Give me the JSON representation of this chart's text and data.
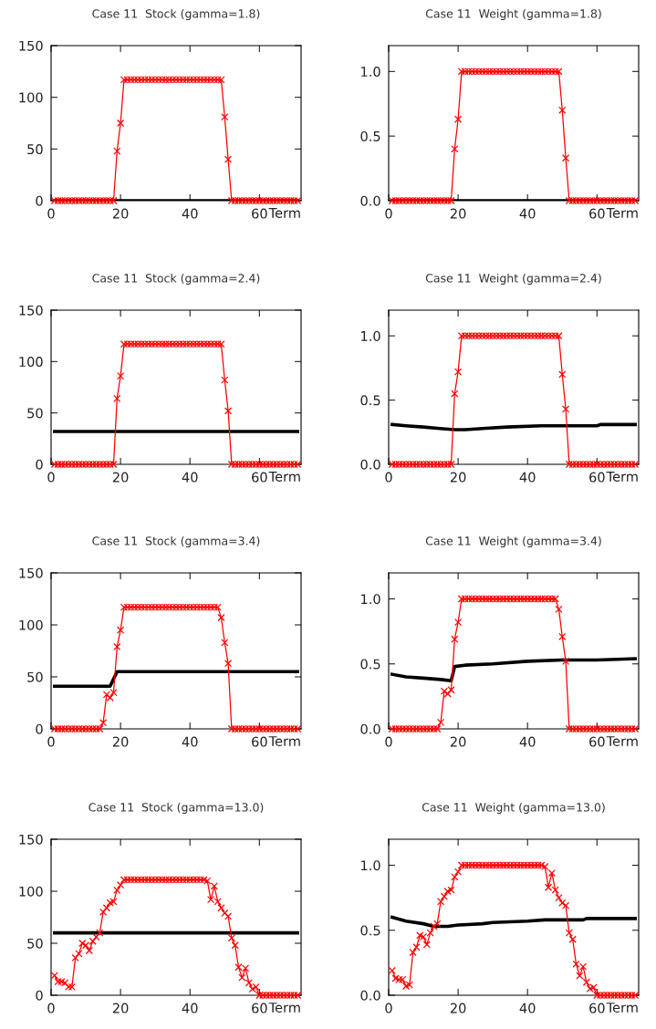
{
  "chart_data": [
    {
      "type": "line",
      "title": "Case 11  Stock (gamma=1.8)",
      "xlabel": "Term",
      "xlim": [
        0,
        72
      ],
      "xticks": [
        0,
        20,
        40,
        60
      ],
      "ylim": [
        0,
        150
      ],
      "yticks": [
        0,
        50,
        100,
        150
      ],
      "x": [
        1,
        2,
        3,
        4,
        5,
        6,
        7,
        8,
        9,
        10,
        11,
        12,
        13,
        14,
        15,
        16,
        17,
        18,
        19,
        20,
        21,
        22,
        23,
        24,
        25,
        26,
        27,
        28,
        29,
        30,
        31,
        32,
        33,
        34,
        35,
        36,
        37,
        38,
        39,
        40,
        41,
        42,
        43,
        44,
        45,
        46,
        47,
        48,
        49,
        50,
        51,
        52,
        53,
        54,
        55,
        56,
        57,
        58,
        59,
        60,
        61,
        62,
        63,
        64,
        65,
        66,
        67,
        68,
        69,
        70,
        71
      ],
      "series": [
        {
          "color": "#ff0000",
          "marker": "cross",
          "values": [
            0,
            0,
            0,
            0,
            0,
            0,
            0,
            0,
            0,
            0,
            0,
            0,
            0,
            0,
            0,
            0,
            0,
            0,
            48,
            75,
            117,
            117,
            117,
            117,
            117,
            117,
            117,
            117,
            117,
            117,
            117,
            117,
            117,
            117,
            117,
            117,
            117,
            117,
            117,
            117,
            117,
            117,
            117,
            117,
            117,
            117,
            117,
            117,
            117,
            81,
            40,
            0,
            0,
            0,
            0,
            0,
            0,
            0,
            0,
            0,
            0,
            0,
            0,
            0,
            0,
            0,
            0,
            0,
            0,
            0,
            0
          ]
        },
        {
          "color": "#000000",
          "marker": "none",
          "x": [
            1,
            71
          ],
          "values": [
            0,
            0
          ]
        }
      ]
    },
    {
      "type": "line",
      "title": "Case 11  Weight (gamma=1.8)",
      "xlabel": "Term",
      "xlim": [
        0,
        72
      ],
      "xticks": [
        0,
        20,
        40,
        60
      ],
      "ylim": [
        0,
        1.2
      ],
      "yticks": [
        {
          "value": 0,
          "label": "0.0"
        },
        {
          "value": 0.5,
          "label": "0.5"
        },
        {
          "value": 1,
          "label": "1.0"
        }
      ],
      "x": [
        1,
        2,
        3,
        4,
        5,
        6,
        7,
        8,
        9,
        10,
        11,
        12,
        13,
        14,
        15,
        16,
        17,
        18,
        19,
        20,
        21,
        22,
        23,
        24,
        25,
        26,
        27,
        28,
        29,
        30,
        31,
        32,
        33,
        34,
        35,
        36,
        37,
        38,
        39,
        40,
        41,
        42,
        43,
        44,
        45,
        46,
        47,
        48,
        49,
        50,
        51,
        52,
        53,
        54,
        55,
        56,
        57,
        58,
        59,
        60,
        61,
        62,
        63,
        64,
        65,
        66,
        67,
        68,
        69,
        70,
        71
      ],
      "series": [
        {
          "color": "#ff0000",
          "marker": "cross",
          "values": [
            0,
            0,
            0,
            0,
            0,
            0,
            0,
            0,
            0,
            0,
            0,
            0,
            0,
            0,
            0,
            0,
            0,
            0,
            0.4,
            0.63,
            1.0,
            1.0,
            1.0,
            1.0,
            1.0,
            1.0,
            1.0,
            1.0,
            1.0,
            1.0,
            1.0,
            1.0,
            1.0,
            1.0,
            1.0,
            1.0,
            1.0,
            1.0,
            1.0,
            1.0,
            1.0,
            1.0,
            1.0,
            1.0,
            1.0,
            1.0,
            1.0,
            1.0,
            1.0,
            0.7,
            0.33,
            0,
            0,
            0,
            0,
            0,
            0,
            0,
            0,
            0,
            0,
            0,
            0,
            0,
            0,
            0,
            0,
            0,
            0,
            0,
            0
          ]
        },
        {
          "color": "#000000",
          "marker": "none",
          "x": [
            1,
            71
          ],
          "values": [
            0,
            0
          ]
        }
      ]
    },
    {
      "type": "line",
      "title": "Case 11  Stock (gamma=2.4)",
      "xlabel": "Term",
      "xlim": [
        0,
        72
      ],
      "xticks": [
        0,
        20,
        40,
        60
      ],
      "ylim": [
        0,
        150
      ],
      "yticks": [
        0,
        50,
        100,
        150
      ],
      "x": [
        1,
        2,
        3,
        4,
        5,
        6,
        7,
        8,
        9,
        10,
        11,
        12,
        13,
        14,
        15,
        16,
        17,
        18,
        19,
        20,
        21,
        22,
        23,
        24,
        25,
        26,
        27,
        28,
        29,
        30,
        31,
        32,
        33,
        34,
        35,
        36,
        37,
        38,
        39,
        40,
        41,
        42,
        43,
        44,
        45,
        46,
        47,
        48,
        49,
        50,
        51,
        52,
        53,
        54,
        55,
        56,
        57,
        58,
        59,
        60,
        61,
        62,
        63,
        64,
        65,
        66,
        67,
        68,
        69,
        70,
        71
      ],
      "series": [
        {
          "color": "#ff0000",
          "marker": "cross",
          "values": [
            0,
            0,
            0,
            0,
            0,
            0,
            0,
            0,
            0,
            0,
            0,
            0,
            0,
            0,
            0,
            0,
            0,
            0,
            64,
            86,
            117,
            117,
            117,
            117,
            117,
            117,
            117,
            117,
            117,
            117,
            117,
            117,
            117,
            117,
            117,
            117,
            117,
            117,
            117,
            117,
            117,
            117,
            117,
            117,
            117,
            117,
            117,
            117,
            117,
            82,
            52,
            0,
            0,
            0,
            0,
            0,
            0,
            0,
            0,
            0,
            0,
            0,
            0,
            0,
            0,
            0,
            0,
            0,
            0,
            0,
            0
          ]
        },
        {
          "color": "#000000",
          "marker": "none",
          "x": [
            1,
            71
          ],
          "values": [
            32,
            32
          ]
        }
      ]
    },
    {
      "type": "line",
      "title": "Case 11  Weight (gamma=2.4)",
      "xlabel": "Term",
      "xlim": [
        0,
        72
      ],
      "xticks": [
        0,
        20,
        40,
        60
      ],
      "ylim": [
        0,
        1.2
      ],
      "yticks": [
        {
          "value": 0,
          "label": "0.0"
        },
        {
          "value": 0.5,
          "label": "0.5"
        },
        {
          "value": 1,
          "label": "1.0"
        }
      ],
      "x": [
        1,
        2,
        3,
        4,
        5,
        6,
        7,
        8,
        9,
        10,
        11,
        12,
        13,
        14,
        15,
        16,
        17,
        18,
        19,
        20,
        21,
        22,
        23,
        24,
        25,
        26,
        27,
        28,
        29,
        30,
        31,
        32,
        33,
        34,
        35,
        36,
        37,
        38,
        39,
        40,
        41,
        42,
        43,
        44,
        45,
        46,
        47,
        48,
        49,
        50,
        51,
        52,
        53,
        54,
        55,
        56,
        57,
        58,
        59,
        60,
        61,
        62,
        63,
        64,
        65,
        66,
        67,
        68,
        69,
        70,
        71
      ],
      "series": [
        {
          "color": "#ff0000",
          "marker": "cross",
          "values": [
            0,
            0,
            0,
            0,
            0,
            0,
            0,
            0,
            0,
            0,
            0,
            0,
            0,
            0,
            0,
            0,
            0,
            0,
            0.55,
            0.72,
            1.0,
            1.0,
            1.0,
            1.0,
            1.0,
            1.0,
            1.0,
            1.0,
            1.0,
            1.0,
            1.0,
            1.0,
            1.0,
            1.0,
            1.0,
            1.0,
            1.0,
            1.0,
            1.0,
            1.0,
            1.0,
            1.0,
            1.0,
            1.0,
            1.0,
            1.0,
            1.0,
            1.0,
            1.0,
            0.7,
            0.43,
            0,
            0,
            0,
            0,
            0,
            0,
            0,
            0,
            0,
            0,
            0,
            0,
            0,
            0,
            0,
            0,
            0,
            0,
            0,
            0
          ]
        },
        {
          "color": "#000000",
          "marker": "none",
          "x": [
            1,
            5,
            10,
            14,
            19,
            22,
            28,
            34,
            44,
            60,
            61,
            71
          ],
          "values": [
            0.31,
            0.3,
            0.29,
            0.28,
            0.27,
            0.27,
            0.28,
            0.29,
            0.3,
            0.3,
            0.31,
            0.31
          ]
        }
      ]
    },
    {
      "type": "line",
      "title": "Case 11  Stock (gamma=3.4)",
      "xlabel": "Term",
      "xlim": [
        0,
        72
      ],
      "xticks": [
        0,
        20,
        40,
        60
      ],
      "ylim": [
        0,
        150
      ],
      "yticks": [
        0,
        50,
        100,
        150
      ],
      "x": [
        1,
        2,
        3,
        4,
        5,
        6,
        7,
        8,
        9,
        10,
        11,
        12,
        13,
        14,
        15,
        16,
        17,
        18,
        19,
        20,
        21,
        22,
        23,
        24,
        25,
        26,
        27,
        28,
        29,
        30,
        31,
        32,
        33,
        34,
        35,
        36,
        37,
        38,
        39,
        40,
        41,
        42,
        43,
        44,
        45,
        46,
        47,
        48,
        49,
        50,
        51,
        52,
        53,
        54,
        55,
        56,
        57,
        58,
        59,
        60,
        61,
        62,
        63,
        64,
        65,
        66,
        67,
        68,
        69,
        70,
        71
      ],
      "series": [
        {
          "color": "#ff0000",
          "marker": "cross",
          "values": [
            0,
            0,
            0,
            0,
            0,
            0,
            0,
            0,
            0,
            0,
            0,
            0,
            0,
            0,
            6,
            33,
            30,
            35,
            79,
            95,
            117,
            117,
            117,
            117,
            117,
            117,
            117,
            117,
            117,
            117,
            117,
            117,
            117,
            117,
            117,
            117,
            117,
            117,
            117,
            117,
            117,
            117,
            117,
            117,
            117,
            117,
            117,
            117,
            107,
            83,
            63,
            0,
            0,
            0,
            0,
            0,
            0,
            0,
            0,
            0,
            0,
            0,
            0,
            0,
            0,
            0,
            0,
            0,
            0,
            0,
            0
          ]
        },
        {
          "color": "#000000",
          "marker": "none",
          "x": [
            1,
            17,
            19,
            71
          ],
          "values": [
            41,
            41,
            55,
            55
          ]
        }
      ]
    },
    {
      "type": "line",
      "title": "Case 11  Weight (gamma=3.4)",
      "xlabel": "Term",
      "xlim": [
        0,
        72
      ],
      "xticks": [
        0,
        20,
        40,
        60
      ],
      "ylim": [
        0,
        1.2
      ],
      "yticks": [
        {
          "value": 0,
          "label": "0.0"
        },
        {
          "value": 0.5,
          "label": "0.5"
        },
        {
          "value": 1,
          "label": "1.0"
        }
      ],
      "x": [
        1,
        2,
        3,
        4,
        5,
        6,
        7,
        8,
        9,
        10,
        11,
        12,
        13,
        14,
        15,
        16,
        17,
        18,
        19,
        20,
        21,
        22,
        23,
        24,
        25,
        26,
        27,
        28,
        29,
        30,
        31,
        32,
        33,
        34,
        35,
        36,
        37,
        38,
        39,
        40,
        41,
        42,
        43,
        44,
        45,
        46,
        47,
        48,
        49,
        50,
        51,
        52,
        53,
        54,
        55,
        56,
        57,
        58,
        59,
        60,
        61,
        62,
        63,
        64,
        65,
        66,
        67,
        68,
        69,
        70,
        71
      ],
      "series": [
        {
          "color": "#ff0000",
          "marker": "cross",
          "values": [
            0,
            0,
            0,
            0,
            0,
            0,
            0,
            0,
            0,
            0,
            0,
            0,
            0,
            0,
            0.05,
            0.29,
            0.27,
            0.3,
            0.69,
            0.82,
            1.0,
            1.0,
            1.0,
            1.0,
            1.0,
            1.0,
            1.0,
            1.0,
            1.0,
            1.0,
            1.0,
            1.0,
            1.0,
            1.0,
            1.0,
            1.0,
            1.0,
            1.0,
            1.0,
            1.0,
            1.0,
            1.0,
            1.0,
            1.0,
            1.0,
            1.0,
            1.0,
            1.0,
            0.92,
            0.71,
            0.52,
            0,
            0,
            0,
            0,
            0,
            0,
            0,
            0,
            0,
            0,
            0,
            0,
            0,
            0,
            0,
            0,
            0,
            0,
            0,
            0
          ]
        },
        {
          "color": "#000000",
          "marker": "none",
          "x": [
            1,
            5,
            10,
            15,
            18,
            19,
            22,
            30,
            40,
            50,
            60,
            71
          ],
          "values": [
            0.42,
            0.4,
            0.39,
            0.38,
            0.37,
            0.48,
            0.49,
            0.5,
            0.52,
            0.53,
            0.53,
            0.54
          ]
        }
      ]
    },
    {
      "type": "line",
      "title": "Case 11  Stock (gamma=13.0)",
      "xlabel": "Term",
      "xlim": [
        0,
        72
      ],
      "xticks": [
        0,
        20,
        40,
        60
      ],
      "ylim": [
        0,
        150
      ],
      "yticks": [
        0,
        50,
        100,
        150
      ],
      "x": [
        1,
        2,
        3,
        4,
        5,
        6,
        7,
        8,
        9,
        10,
        11,
        12,
        13,
        14,
        15,
        16,
        17,
        18,
        19,
        20,
        21,
        22,
        23,
        24,
        25,
        26,
        27,
        28,
        29,
        30,
        31,
        32,
        33,
        34,
        35,
        36,
        37,
        38,
        39,
        40,
        41,
        42,
        43,
        44,
        45,
        46,
        47,
        48,
        49,
        50,
        51,
        52,
        53,
        54,
        55,
        56,
        57,
        58,
        59,
        60,
        61,
        62,
        63,
        64,
        65,
        66,
        67,
        68,
        69,
        70,
        71
      ],
      "series": [
        {
          "color": "#ff0000",
          "marker": "cross",
          "values": [
            19,
            13,
            13,
            12,
            8,
            8,
            36,
            40,
            50,
            48,
            43,
            52,
            56,
            60,
            80,
            84,
            89,
            90,
            101,
            106,
            111,
            111,
            111,
            111,
            111,
            111,
            111,
            111,
            111,
            111,
            111,
            111,
            111,
            111,
            111,
            111,
            111,
            111,
            111,
            111,
            111,
            111,
            111,
            111,
            110,
            92,
            105,
            90,
            84,
            79,
            76,
            55,
            48,
            27,
            17,
            26,
            12,
            6,
            8,
            0,
            0,
            0,
            0,
            0,
            0,
            0,
            0,
            0,
            0,
            0,
            0
          ]
        },
        {
          "color": "#000000",
          "marker": "none",
          "x": [
            1,
            71
          ],
          "values": [
            60,
            60
          ]
        }
      ]
    },
    {
      "type": "line",
      "title": "Case 11  Weight (gamma=13.0)",
      "xlabel": "Term",
      "xlim": [
        0,
        72
      ],
      "xticks": [
        0,
        20,
        40,
        60
      ],
      "ylim": [
        0,
        1.2
      ],
      "yticks": [
        {
          "value": 0,
          "label": "0.0"
        },
        {
          "value": 0.5,
          "label": "0.5"
        },
        {
          "value": 1,
          "label": "1.0"
        }
      ],
      "x": [
        1,
        2,
        3,
        4,
        5,
        6,
        7,
        8,
        9,
        10,
        11,
        12,
        13,
        14,
        15,
        16,
        17,
        18,
        19,
        20,
        21,
        22,
        23,
        24,
        25,
        26,
        27,
        28,
        29,
        30,
        31,
        32,
        33,
        34,
        35,
        36,
        37,
        38,
        39,
        40,
        41,
        42,
        43,
        44,
        45,
        46,
        47,
        48,
        49,
        50,
        51,
        52,
        53,
        54,
        55,
        56,
        57,
        58,
        59,
        60,
        61,
        62,
        63,
        64,
        65,
        66,
        67,
        68,
        69,
        70,
        71
      ],
      "series": [
        {
          "color": "#ff0000",
          "marker": "cross",
          "values": [
            0.19,
            0.13,
            0.12,
            0.12,
            0.07,
            0.08,
            0.33,
            0.37,
            0.46,
            0.45,
            0.39,
            0.48,
            0.53,
            0.55,
            0.72,
            0.76,
            0.8,
            0.81,
            0.91,
            0.95,
            1.0,
            1.0,
            1.0,
            1.0,
            1.0,
            1.0,
            1.0,
            1.0,
            1.0,
            1.0,
            1.0,
            1.0,
            1.0,
            1.0,
            1.0,
            1.0,
            1.0,
            1.0,
            1.0,
            1.0,
            1.0,
            1.0,
            1.0,
            1.0,
            0.99,
            0.83,
            0.94,
            0.81,
            0.75,
            0.71,
            0.69,
            0.48,
            0.43,
            0.24,
            0.15,
            0.22,
            0.1,
            0.05,
            0.06,
            0,
            0,
            0,
            0,
            0,
            0,
            0,
            0,
            0,
            0,
            0,
            0
          ]
        },
        {
          "color": "#000000",
          "marker": "none",
          "x": [
            1,
            5,
            10,
            13,
            17,
            20,
            27,
            30,
            40,
            45,
            56,
            57,
            71
          ],
          "values": [
            0.6,
            0.57,
            0.55,
            0.53,
            0.53,
            0.54,
            0.55,
            0.56,
            0.57,
            0.58,
            0.58,
            0.59,
            0.59
          ]
        }
      ]
    }
  ]
}
